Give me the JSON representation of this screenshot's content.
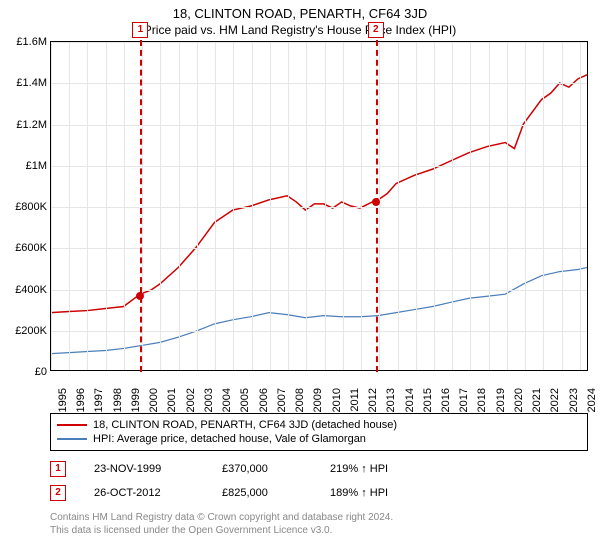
{
  "title": "18, CLINTON ROAD, PENARTH, CF64 3JD",
  "subtitle": "Price paid vs. HM Land Registry's House Price Index (HPI)",
  "chart": {
    "type": "line",
    "ylim": [
      0,
      1600000
    ],
    "ytick_step": 200000,
    "y_tick_labels": [
      "£0",
      "£200K",
      "£400K",
      "£600K",
      "£800K",
      "£1M",
      "£1.2M",
      "£1.4M",
      "£1.6M"
    ],
    "x_tick_labels": [
      "1995",
      "1996",
      "1997",
      "1998",
      "1999",
      "2000",
      "2001",
      "2002",
      "2003",
      "2004",
      "2005",
      "2006",
      "2007",
      "2008",
      "2009",
      "2010",
      "2011",
      "2012",
      "2013",
      "2014",
      "2015",
      "2016",
      "2017",
      "2018",
      "2019",
      "2020",
      "2021",
      "2022",
      "2023",
      "2024"
    ],
    "x_range": [
      1995,
      2024.5
    ],
    "grid_color": "#e6e6e6",
    "background_color": "#ffffff",
    "series": [
      {
        "name": "price_paid",
        "color": "#d00000",
        "width": 1.5,
        "points": [
          [
            1995,
            280000
          ],
          [
            1996,
            285000
          ],
          [
            1997,
            290000
          ],
          [
            1998,
            300000
          ],
          [
            1999,
            310000
          ],
          [
            1999.9,
            370000
          ],
          [
            2000.5,
            390000
          ],
          [
            2001,
            420000
          ],
          [
            2002,
            500000
          ],
          [
            2003,
            600000
          ],
          [
            2004,
            720000
          ],
          [
            2005,
            780000
          ],
          [
            2006,
            800000
          ],
          [
            2007,
            830000
          ],
          [
            2008,
            850000
          ],
          [
            2008.5,
            820000
          ],
          [
            2009,
            780000
          ],
          [
            2009.5,
            810000
          ],
          [
            2010,
            810000
          ],
          [
            2010.5,
            790000
          ],
          [
            2011,
            820000
          ],
          [
            2011.5,
            800000
          ],
          [
            2012,
            790000
          ],
          [
            2012.81,
            825000
          ],
          [
            2013,
            830000
          ],
          [
            2013.5,
            860000
          ],
          [
            2014,
            910000
          ],
          [
            2015,
            950000
          ],
          [
            2016,
            980000
          ],
          [
            2017,
            1020000
          ],
          [
            2018,
            1060000
          ],
          [
            2019,
            1090000
          ],
          [
            2020,
            1110000
          ],
          [
            2020.5,
            1080000
          ],
          [
            2021,
            1200000
          ],
          [
            2022,
            1320000
          ],
          [
            2022.5,
            1350000
          ],
          [
            2023,
            1400000
          ],
          [
            2023.5,
            1380000
          ],
          [
            2024,
            1420000
          ],
          [
            2024.5,
            1440000
          ]
        ]
      },
      {
        "name": "hpi",
        "color": "#4a7ebb",
        "width": 1.2,
        "points": [
          [
            1995,
            80000
          ],
          [
            1996,
            85000
          ],
          [
            1997,
            90000
          ],
          [
            1998,
            95000
          ],
          [
            1999,
            105000
          ],
          [
            2000,
            120000
          ],
          [
            2001,
            135000
          ],
          [
            2002,
            160000
          ],
          [
            2003,
            190000
          ],
          [
            2004,
            225000
          ],
          [
            2005,
            245000
          ],
          [
            2006,
            260000
          ],
          [
            2007,
            280000
          ],
          [
            2008,
            270000
          ],
          [
            2009,
            255000
          ],
          [
            2010,
            265000
          ],
          [
            2011,
            260000
          ],
          [
            2012,
            260000
          ],
          [
            2013,
            265000
          ],
          [
            2014,
            280000
          ],
          [
            2015,
            295000
          ],
          [
            2016,
            310000
          ],
          [
            2017,
            330000
          ],
          [
            2018,
            350000
          ],
          [
            2019,
            360000
          ],
          [
            2020,
            370000
          ],
          [
            2021,
            420000
          ],
          [
            2022,
            460000
          ],
          [
            2023,
            480000
          ],
          [
            2024,
            490000
          ],
          [
            2024.5,
            500000
          ]
        ]
      }
    ],
    "events": [
      {
        "label": "1",
        "x": 1999.9,
        "marker_y": 370000
      },
      {
        "label": "2",
        "x": 2012.81,
        "marker_y": 825000
      }
    ]
  },
  "legend": {
    "items": [
      {
        "color": "#d00000",
        "label": "18, CLINTON ROAD, PENARTH, CF64 3JD (detached house)"
      },
      {
        "color": "#4a7ebb",
        "label": "HPI: Average price, detached house, Vale of Glamorgan"
      }
    ]
  },
  "transactions": [
    {
      "badge": "1",
      "date": "23-NOV-1999",
      "price": "£370,000",
      "hpi": "219% ↑ HPI"
    },
    {
      "badge": "2",
      "date": "26-OCT-2012",
      "price": "£825,000",
      "hpi": "189% ↑ HPI"
    }
  ],
  "footer": {
    "line1": "Contains HM Land Registry data © Crown copyright and database right 2024.",
    "line2": "This data is licensed under the Open Government Licence v3.0."
  }
}
